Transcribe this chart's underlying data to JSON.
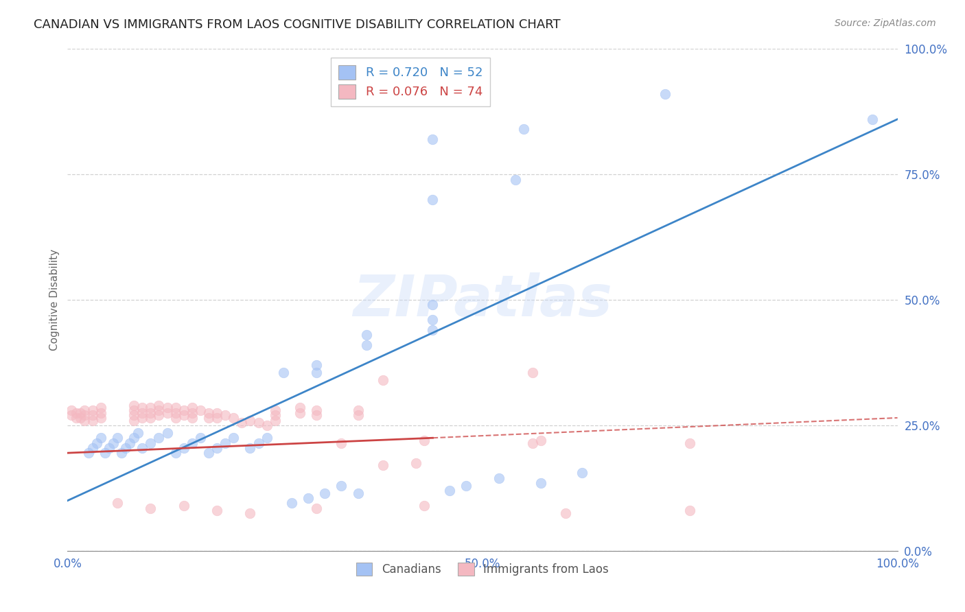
{
  "title": "CANADIAN VS IMMIGRANTS FROM LAOS COGNITIVE DISABILITY CORRELATION CHART",
  "source": "Source: ZipAtlas.com",
  "ylabel": "Cognitive Disability",
  "xlim": [
    0,
    1
  ],
  "ylim": [
    0,
    1
  ],
  "xticks": [
    0.0,
    0.25,
    0.5,
    0.75,
    1.0
  ],
  "yticks": [
    0.0,
    0.25,
    0.5,
    0.75,
    1.0
  ],
  "xticklabels": [
    "0.0%",
    "",
    "50.0%",
    "",
    "100.0%"
  ],
  "yticklabels": [
    "0.0%",
    "25.0%",
    "50.0%",
    "75.0%",
    "100.0%"
  ],
  "watermark": "ZIPatlas",
  "canadian_color": "#a4c2f4",
  "laos_color": "#f4b8c1",
  "canadian_line_color": "#3d85c8",
  "laos_line_color": "#cc4444",
  "background_color": "#ffffff",
  "grid_color": "#cccccc",
  "canadian_points": [
    [
      0.97,
      0.86
    ],
    [
      0.72,
      0.91
    ],
    [
      0.55,
      0.84
    ],
    [
      0.54,
      0.74
    ],
    [
      0.44,
      0.82
    ],
    [
      0.44,
      0.7
    ],
    [
      0.44,
      0.49
    ],
    [
      0.44,
      0.46
    ],
    [
      0.44,
      0.44
    ],
    [
      0.36,
      0.43
    ],
    [
      0.36,
      0.41
    ],
    [
      0.3,
      0.37
    ],
    [
      0.3,
      0.355
    ],
    [
      0.26,
      0.355
    ],
    [
      0.24,
      0.225
    ],
    [
      0.23,
      0.215
    ],
    [
      0.22,
      0.205
    ],
    [
      0.2,
      0.225
    ],
    [
      0.19,
      0.215
    ],
    [
      0.18,
      0.205
    ],
    [
      0.17,
      0.195
    ],
    [
      0.16,
      0.225
    ],
    [
      0.15,
      0.215
    ],
    [
      0.14,
      0.205
    ],
    [
      0.13,
      0.195
    ],
    [
      0.12,
      0.235
    ],
    [
      0.11,
      0.225
    ],
    [
      0.1,
      0.215
    ],
    [
      0.09,
      0.205
    ],
    [
      0.085,
      0.235
    ],
    [
      0.08,
      0.225
    ],
    [
      0.075,
      0.215
    ],
    [
      0.07,
      0.205
    ],
    [
      0.065,
      0.195
    ],
    [
      0.06,
      0.225
    ],
    [
      0.055,
      0.215
    ],
    [
      0.05,
      0.205
    ],
    [
      0.045,
      0.195
    ],
    [
      0.04,
      0.225
    ],
    [
      0.035,
      0.215
    ],
    [
      0.03,
      0.205
    ],
    [
      0.025,
      0.195
    ],
    [
      0.62,
      0.155
    ],
    [
      0.57,
      0.135
    ],
    [
      0.52,
      0.145
    ],
    [
      0.48,
      0.13
    ],
    [
      0.46,
      0.12
    ],
    [
      0.35,
      0.115
    ],
    [
      0.33,
      0.13
    ],
    [
      0.31,
      0.115
    ],
    [
      0.29,
      0.105
    ],
    [
      0.27,
      0.095
    ]
  ],
  "laos_points": [
    [
      0.56,
      0.355
    ],
    [
      0.43,
      0.22
    ],
    [
      0.38,
      0.34
    ],
    [
      0.33,
      0.215
    ],
    [
      0.56,
      0.215
    ],
    [
      0.57,
      0.22
    ],
    [
      0.75,
      0.215
    ],
    [
      0.08,
      0.29
    ],
    [
      0.08,
      0.28
    ],
    [
      0.08,
      0.27
    ],
    [
      0.08,
      0.26
    ],
    [
      0.09,
      0.285
    ],
    [
      0.09,
      0.275
    ],
    [
      0.09,
      0.265
    ],
    [
      0.1,
      0.285
    ],
    [
      0.1,
      0.275
    ],
    [
      0.1,
      0.265
    ],
    [
      0.11,
      0.29
    ],
    [
      0.11,
      0.28
    ],
    [
      0.11,
      0.27
    ],
    [
      0.12,
      0.285
    ],
    [
      0.12,
      0.275
    ],
    [
      0.13,
      0.285
    ],
    [
      0.13,
      0.275
    ],
    [
      0.13,
      0.265
    ],
    [
      0.14,
      0.28
    ],
    [
      0.14,
      0.27
    ],
    [
      0.15,
      0.285
    ],
    [
      0.15,
      0.275
    ],
    [
      0.15,
      0.265
    ],
    [
      0.16,
      0.28
    ],
    [
      0.17,
      0.275
    ],
    [
      0.17,
      0.265
    ],
    [
      0.18,
      0.275
    ],
    [
      0.18,
      0.265
    ],
    [
      0.19,
      0.27
    ],
    [
      0.2,
      0.265
    ],
    [
      0.21,
      0.255
    ],
    [
      0.22,
      0.26
    ],
    [
      0.23,
      0.255
    ],
    [
      0.24,
      0.25
    ],
    [
      0.25,
      0.28
    ],
    [
      0.25,
      0.27
    ],
    [
      0.25,
      0.26
    ],
    [
      0.04,
      0.285
    ],
    [
      0.04,
      0.275
    ],
    [
      0.04,
      0.265
    ],
    [
      0.03,
      0.28
    ],
    [
      0.03,
      0.27
    ],
    [
      0.03,
      0.26
    ],
    [
      0.02,
      0.28
    ],
    [
      0.02,
      0.27
    ],
    [
      0.02,
      0.26
    ],
    [
      0.015,
      0.275
    ],
    [
      0.015,
      0.265
    ],
    [
      0.01,
      0.275
    ],
    [
      0.01,
      0.265
    ],
    [
      0.005,
      0.28
    ],
    [
      0.005,
      0.27
    ],
    [
      0.28,
      0.285
    ],
    [
      0.28,
      0.275
    ],
    [
      0.3,
      0.28
    ],
    [
      0.3,
      0.27
    ],
    [
      0.35,
      0.28
    ],
    [
      0.35,
      0.27
    ],
    [
      0.38,
      0.17
    ],
    [
      0.42,
      0.175
    ],
    [
      0.06,
      0.095
    ],
    [
      0.1,
      0.085
    ],
    [
      0.14,
      0.09
    ],
    [
      0.18,
      0.08
    ],
    [
      0.22,
      0.075
    ],
    [
      0.3,
      0.085
    ],
    [
      0.43,
      0.09
    ],
    [
      0.6,
      0.075
    ],
    [
      0.75,
      0.08
    ]
  ],
  "canadian_line": {
    "x0": 0.0,
    "y0": 0.1,
    "x1": 1.0,
    "y1": 0.86
  },
  "laos_line_solid": {
    "x0": 0.0,
    "y0": 0.195,
    "x1": 0.44,
    "y1": 0.225
  },
  "laos_line_dashed": {
    "x0": 0.44,
    "y0": 0.225,
    "x1": 1.0,
    "y1": 0.265
  }
}
